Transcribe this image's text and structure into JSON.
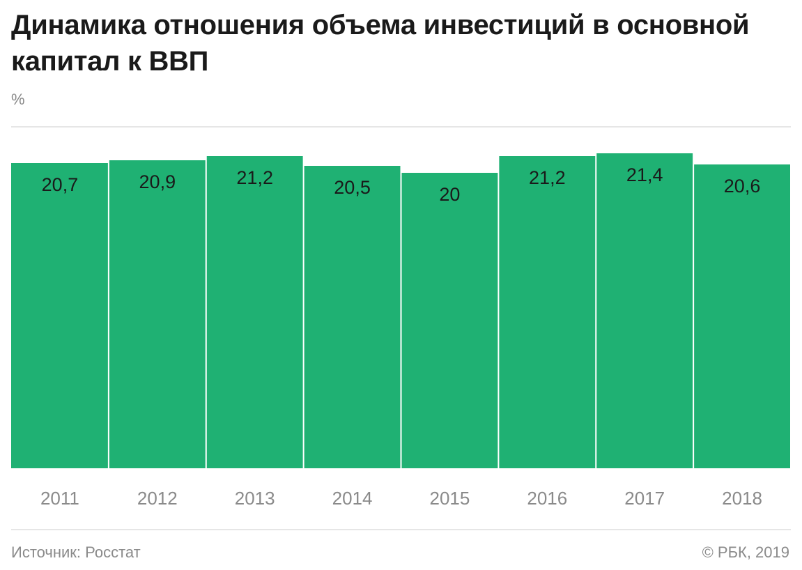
{
  "title": "Динамика отношения объема инвестиций в основной капитал к ВВП",
  "unit_label": "%",
  "footer": {
    "source": "Источник: Росстат",
    "copyright": "© РБК, 2019"
  },
  "colors": {
    "bar": "#1fb173",
    "bar_divider": "#ffffff",
    "rule": "#dddddd",
    "tick_text": "#8a8a8a",
    "value_text": "#1a1a1a"
  },
  "chart_data": {
    "type": "bar",
    "categories": [
      "2011",
      "2012",
      "2013",
      "2014",
      "2015",
      "2016",
      "2017",
      "2018"
    ],
    "values": [
      20.7,
      20.9,
      21.2,
      20.5,
      20,
      21.2,
      21.4,
      20.6
    ],
    "value_labels": [
      "20,7",
      "20,9",
      "21,2",
      "20,5",
      "20",
      "21,2",
      "21,4",
      "20,6"
    ],
    "title": "Динамика отношения объема инвестиций в основной капитал к ВВП",
    "xlabel": "",
    "ylabel": "%",
    "grid": false,
    "legend": "none"
  }
}
